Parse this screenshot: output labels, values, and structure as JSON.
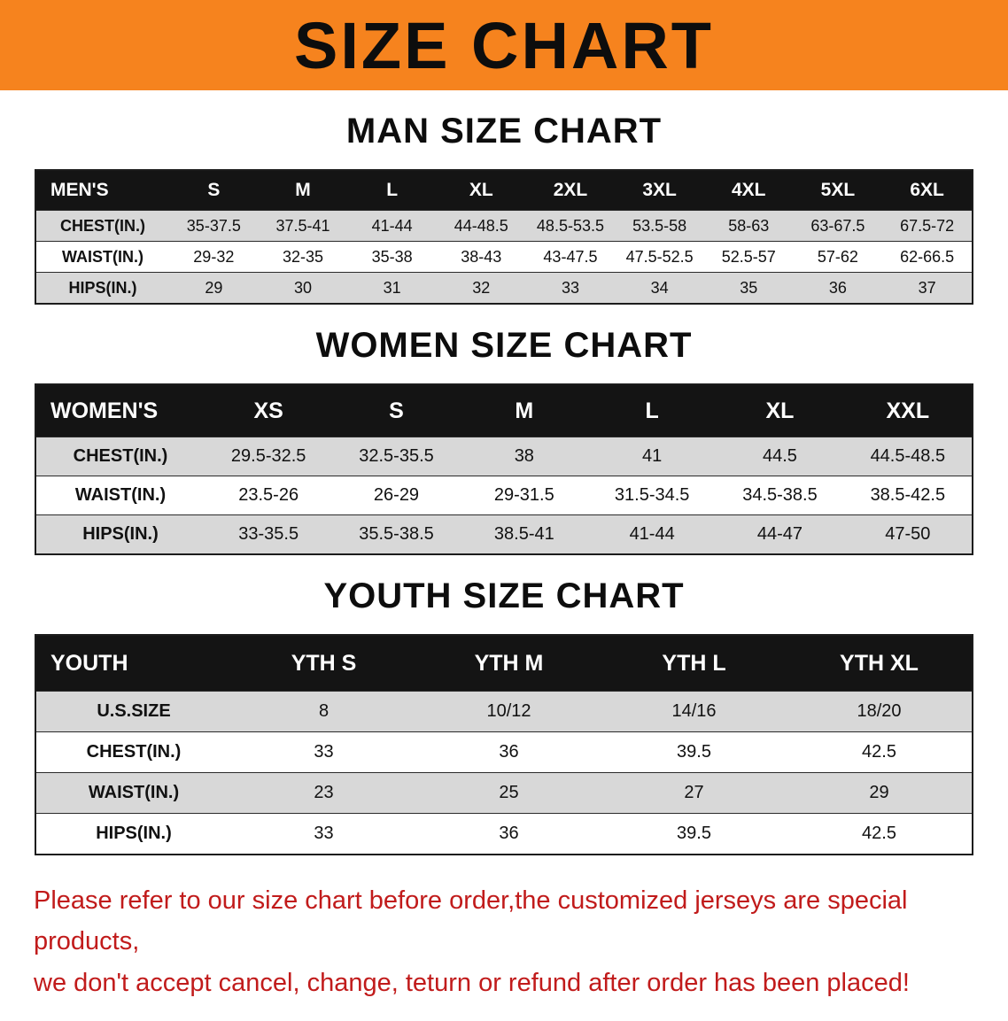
{
  "banner": {
    "title": "SIZE CHART"
  },
  "colors": {
    "banner_bg": "#F6831E",
    "table_header_bg": "#141414",
    "row_alt_bg": "#D8D8D8",
    "note_text": "#C11B1B"
  },
  "sections": [
    {
      "heading": "MAN SIZE CHART",
      "table": {
        "header": [
          "MEN'S",
          "S",
          "M",
          "L",
          "XL",
          "2XL",
          "3XL",
          "4XL",
          "5XL",
          "6XL"
        ],
        "rows": [
          {
            "label": "CHEST(IN.)",
            "values": [
              "35-37.5",
              "37.5-41",
              "41-44",
              "44-48.5",
              "48.5-53.5",
              "53.5-58",
              "58-63",
              "63-67.5",
              "67.5-72"
            ]
          },
          {
            "label": "WAIST(IN.)",
            "values": [
              "29-32",
              "32-35",
              "35-38",
              "38-43",
              "43-47.5",
              "47.5-52.5",
              "52.5-57",
              "57-62",
              "62-66.5"
            ]
          },
          {
            "label": "HIPS(IN.)",
            "values": [
              "29",
              "30",
              "31",
              "32",
              "33",
              "34",
              "35",
              "36",
              "37"
            ]
          }
        ]
      }
    },
    {
      "heading": "WOMEN SIZE CHART",
      "table": {
        "header": [
          "WOMEN'S",
          "XS",
          "S",
          "M",
          "L",
          "XL",
          "XXL"
        ],
        "rows": [
          {
            "label": "CHEST(IN.)",
            "values": [
              "29.5-32.5",
              "32.5-35.5",
              "38",
              "41",
              "44.5",
              "44.5-48.5"
            ]
          },
          {
            "label": "WAIST(IN.)",
            "values": [
              "23.5-26",
              "26-29",
              "29-31.5",
              "31.5-34.5",
              "34.5-38.5",
              "38.5-42.5"
            ]
          },
          {
            "label": "HIPS(IN.)",
            "values": [
              "33-35.5",
              "35.5-38.5",
              "38.5-41",
              "41-44",
              "44-47",
              "47-50"
            ]
          }
        ]
      }
    },
    {
      "heading": "YOUTH SIZE CHART",
      "table": {
        "header": [
          "YOUTH",
          "YTH S",
          "YTH M",
          "YTH L",
          "YTH XL"
        ],
        "rows": [
          {
            "label": "U.S.SIZE",
            "values": [
              "8",
              "10/12",
              "14/16",
              "18/20"
            ]
          },
          {
            "label": "CHEST(IN.)",
            "values": [
              "33",
              "36",
              "39.5",
              "42.5"
            ]
          },
          {
            "label": "WAIST(IN.)",
            "values": [
              "23",
              "25",
              "27",
              "29"
            ]
          },
          {
            "label": "HIPS(IN.)",
            "values": [
              "33",
              "36",
              "39.5",
              "42.5"
            ]
          }
        ]
      }
    }
  ],
  "note": {
    "line1": "Please refer to our size chart before order,the customized jerseys are special products,",
    "line2": "we don't accept cancel, change, teturn or refund after order has been placed!"
  }
}
